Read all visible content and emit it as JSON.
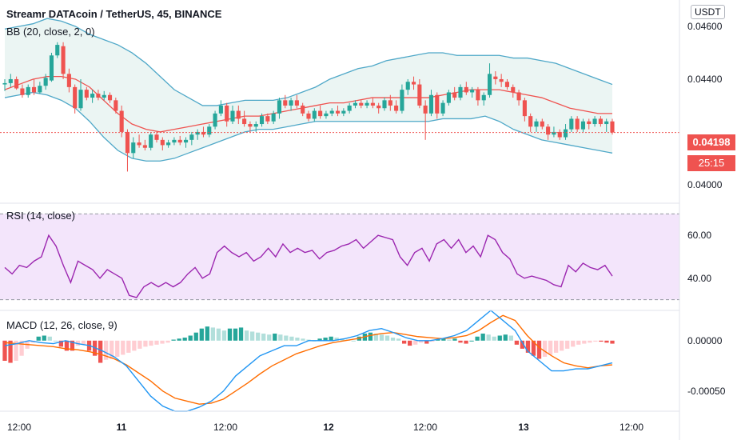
{
  "title": "Streamr DATAcoin / TetherUS, 45, BINANCE",
  "currency_button": "USDT",
  "bb_label": "BB (20, close, 2, 0)",
  "rsi_label": "RSI (14, close)",
  "macd_label": "MACD (12, 26, close, 9)",
  "last_price": "0.04198",
  "countdown": "25:15",
  "colors": {
    "up": "#26a69a",
    "down": "#ef5350",
    "bb_band": "#4fa8c8",
    "bb_basis": "#ef5350",
    "bb_fill": "#ebf5f3",
    "rsi_line": "#9c27b0",
    "rsi_fill": "#f3e5fb",
    "macd_line": "#2196f3",
    "signal_line": "#ff6d00"
  },
  "chart_data": {
    "price_panel": {
      "type": "candlestick",
      "y_ticks": [
        "0.04600",
        "0.04400",
        "0.04000"
      ],
      "ylim": [
        0.0393,
        0.047
      ],
      "candles": [
        [
          0.0438,
          0.044,
          0.04355,
          0.04385
        ],
        [
          0.04385,
          0.0442,
          0.0437,
          0.044
        ],
        [
          0.044,
          0.0441,
          0.0436,
          0.04365
        ],
        [
          0.04365,
          0.0438,
          0.0433,
          0.0434
        ],
        [
          0.0434,
          0.0438,
          0.0433,
          0.0437
        ],
        [
          0.0437,
          0.044,
          0.0434,
          0.0435
        ],
        [
          0.0435,
          0.0439,
          0.04345,
          0.04375
        ],
        [
          0.04375,
          0.0442,
          0.0436,
          0.04405
        ],
        [
          0.04395,
          0.045,
          0.0439,
          0.0449
        ],
        [
          0.0449,
          0.0454,
          0.0448,
          0.0453
        ],
        [
          0.04525,
          0.0454,
          0.044,
          0.0442
        ],
        [
          0.0442,
          0.0444,
          0.0435,
          0.0437
        ],
        [
          0.0437,
          0.0438,
          0.0427,
          0.0429
        ],
        [
          0.0429,
          0.044,
          0.0428,
          0.0436
        ],
        [
          0.0436,
          0.0437,
          0.0432,
          0.0433
        ],
        [
          0.0433,
          0.0436,
          0.0431,
          0.04345
        ],
        [
          0.04345,
          0.0436,
          0.0432,
          0.0433
        ],
        [
          0.0433,
          0.04355,
          0.0432,
          0.0434
        ],
        [
          0.0434,
          0.0435,
          0.0431,
          0.0432
        ],
        [
          0.0432,
          0.0433,
          0.0427,
          0.0428
        ],
        [
          0.0428,
          0.043,
          0.0418,
          0.042
        ],
        [
          0.042,
          0.0421,
          0.0405,
          0.0412
        ],
        [
          0.0412,
          0.0418,
          0.041,
          0.0416
        ],
        [
          0.0416,
          0.0419,
          0.0414,
          0.0415
        ],
        [
          0.0415,
          0.0417,
          0.0413,
          0.0414
        ],
        [
          0.0414,
          0.042,
          0.0413,
          0.0419
        ],
        [
          0.0419,
          0.042,
          0.0416,
          0.0417
        ],
        [
          0.0417,
          0.0418,
          0.0413,
          0.0415
        ],
        [
          0.0415,
          0.0417,
          0.0414,
          0.0416
        ],
        [
          0.0416,
          0.0418,
          0.0415,
          0.0417
        ],
        [
          0.0417,
          0.04185,
          0.0415,
          0.0416
        ],
        [
          0.0416,
          0.0418,
          0.0414,
          0.0417
        ],
        [
          0.0417,
          0.042,
          0.0415,
          0.0419
        ],
        [
          0.0419,
          0.0421,
          0.0417,
          0.042
        ],
        [
          0.042,
          0.0422,
          0.0418,
          0.0419
        ],
        [
          0.0419,
          0.0423,
          0.0418,
          0.0422
        ],
        [
          0.0422,
          0.0428,
          0.0421,
          0.0427
        ],
        [
          0.0427,
          0.0432,
          0.0426,
          0.043
        ],
        [
          0.043,
          0.0431,
          0.0422,
          0.0424
        ],
        [
          0.0424,
          0.043,
          0.0423,
          0.0428
        ],
        [
          0.0428,
          0.043,
          0.0423,
          0.0425
        ],
        [
          0.0425,
          0.0428,
          0.0422,
          0.0423
        ],
        [
          0.0423,
          0.0424,
          0.042,
          0.0422
        ],
        [
          0.0422,
          0.0424,
          0.042,
          0.0423
        ],
        [
          0.0423,
          0.0427,
          0.0422,
          0.0426
        ],
        [
          0.0426,
          0.0427,
          0.0423,
          0.0424
        ],
        [
          0.0424,
          0.0428,
          0.0423,
          0.0427
        ],
        [
          0.0427,
          0.0433,
          0.0425,
          0.0432
        ],
        [
          0.0432,
          0.0434,
          0.0429,
          0.043
        ],
        [
          0.043,
          0.0433,
          0.0428,
          0.0432
        ],
        [
          0.0432,
          0.0434,
          0.0429,
          0.043
        ],
        [
          0.043,
          0.0431,
          0.0426,
          0.0427
        ],
        [
          0.0427,
          0.0428,
          0.0424,
          0.0425
        ],
        [
          0.0425,
          0.0429,
          0.0424,
          0.0428
        ],
        [
          0.0428,
          0.043,
          0.0425,
          0.0426
        ],
        [
          0.0426,
          0.0428,
          0.0425,
          0.0427
        ],
        [
          0.0427,
          0.0429,
          0.0426,
          0.0428
        ],
        [
          0.0428,
          0.043,
          0.0426,
          0.0427
        ],
        [
          0.0427,
          0.0429,
          0.0426,
          0.0428
        ],
        [
          0.0428,
          0.0431,
          0.0427,
          0.043
        ],
        [
          0.043,
          0.0432,
          0.0429,
          0.0431
        ],
        [
          0.0431,
          0.0432,
          0.0429,
          0.043
        ],
        [
          0.043,
          0.0432,
          0.0429,
          0.0431
        ],
        [
          0.0431,
          0.0433,
          0.0429,
          0.043
        ],
        [
          0.043,
          0.0431,
          0.0427,
          0.0429
        ],
        [
          0.0429,
          0.0433,
          0.0428,
          0.0432
        ],
        [
          0.0432,
          0.0434,
          0.0428,
          0.043
        ],
        [
          0.043,
          0.0432,
          0.0427,
          0.0428
        ],
        [
          0.0428,
          0.0438,
          0.0427,
          0.0436
        ],
        [
          0.0436,
          0.044,
          0.0434,
          0.0439
        ],
        [
          0.0439,
          0.0441,
          0.0436,
          0.0438
        ],
        [
          0.0438,
          0.044,
          0.0429,
          0.043
        ],
        [
          0.043,
          0.0432,
          0.0417,
          0.0427
        ],
        [
          0.0427,
          0.0436,
          0.0426,
          0.0434
        ],
        [
          0.0434,
          0.0435,
          0.0425,
          0.0427
        ],
        [
          0.0427,
          0.0432,
          0.0426,
          0.0431
        ],
        [
          0.0431,
          0.0436,
          0.043,
          0.0435
        ],
        [
          0.0435,
          0.0437,
          0.0432,
          0.0433
        ],
        [
          0.0433,
          0.0438,
          0.0432,
          0.0437
        ],
        [
          0.0437,
          0.0439,
          0.0434,
          0.0435
        ],
        [
          0.0435,
          0.0437,
          0.0433,
          0.0436
        ],
        [
          0.0436,
          0.0437,
          0.043,
          0.0432
        ],
        [
          0.0432,
          0.0435,
          0.043,
          0.0434
        ],
        [
          0.0434,
          0.0446,
          0.0433,
          0.0442
        ],
        [
          0.0441,
          0.0443,
          0.0438,
          0.044
        ],
        [
          0.044,
          0.0442,
          0.0437,
          0.0439
        ],
        [
          0.0439,
          0.044,
          0.0436,
          0.0437
        ],
        [
          0.0437,
          0.0438,
          0.0433,
          0.0435
        ],
        [
          0.0435,
          0.0436,
          0.043,
          0.0432
        ],
        [
          0.0432,
          0.0433,
          0.0424,
          0.0426
        ],
        [
          0.0426,
          0.0427,
          0.042,
          0.0422
        ],
        [
          0.0422,
          0.0425,
          0.042,
          0.0424
        ],
        [
          0.0424,
          0.0425,
          0.0421,
          0.0422
        ],
        [
          0.0422,
          0.0423,
          0.0417,
          0.0419
        ],
        [
          0.0419,
          0.0422,
          0.0418,
          0.042
        ],
        [
          0.042,
          0.0421,
          0.0417,
          0.0418
        ],
        [
          0.0418,
          0.0423,
          0.0417,
          0.0421
        ],
        [
          0.0421,
          0.0426,
          0.042,
          0.0425
        ],
        [
          0.0425,
          0.0426,
          0.042,
          0.0421
        ],
        [
          0.0421,
          0.0425,
          0.042,
          0.0424
        ],
        [
          0.0424,
          0.0425,
          0.0421,
          0.0423
        ],
        [
          0.0423,
          0.0426,
          0.0422,
          0.0425
        ],
        [
          0.0425,
          0.0426,
          0.0422,
          0.0423
        ],
        [
          0.0423,
          0.0425,
          0.042,
          0.0424
        ],
        [
          0.0424,
          0.0425,
          0.0419,
          0.04198
        ]
      ],
      "bb_upper": [
        0.0459,
        0.046,
        0.0461,
        0.0463,
        0.0462,
        0.046,
        0.0457,
        0.0455,
        0.0453,
        0.045,
        0.0446,
        0.0441,
        0.0436,
        0.0433,
        0.043,
        0.043,
        0.0431,
        0.0432,
        0.0432,
        0.0432,
        0.0433,
        0.0435,
        0.0437,
        0.044,
        0.0442,
        0.0444,
        0.0445,
        0.0447,
        0.0448,
        0.0449,
        0.045,
        0.045,
        0.0449,
        0.0449,
        0.0449,
        0.0449,
        0.0448,
        0.0448,
        0.0447,
        0.0446,
        0.0444,
        0.0442,
        0.044,
        0.0438
      ],
      "bb_basis": [
        0.0436,
        0.0438,
        0.044,
        0.0441,
        0.0441,
        0.044,
        0.0437,
        0.0432,
        0.0427,
        0.0423,
        0.0421,
        0.042,
        0.0421,
        0.0422,
        0.0423,
        0.0424,
        0.0425,
        0.0426,
        0.0426,
        0.0427,
        0.0428,
        0.0429,
        0.043,
        0.0431,
        0.0431,
        0.0432,
        0.0433,
        0.0433,
        0.0433,
        0.0433,
        0.0433,
        0.0434,
        0.0435,
        0.0436,
        0.0436,
        0.0436,
        0.0435,
        0.0434,
        0.0433,
        0.0431,
        0.0429,
        0.0428,
        0.0427,
        0.0427
      ],
      "bb_lower": [
        0.0433,
        0.0434,
        0.0435,
        0.0434,
        0.0432,
        0.0429,
        0.0424,
        0.0418,
        0.0413,
        0.041,
        0.0409,
        0.0409,
        0.041,
        0.0412,
        0.0414,
        0.0416,
        0.0418,
        0.042,
        0.0421,
        0.0421,
        0.0422,
        0.0423,
        0.0424,
        0.0424,
        0.0424,
        0.0424,
        0.0424,
        0.0424,
        0.0424,
        0.0424,
        0.0424,
        0.0425,
        0.0425,
        0.0425,
        0.0426,
        0.0424,
        0.0421,
        0.0419,
        0.0417,
        0.0416,
        0.0415,
        0.0414,
        0.0413,
        0.0412
      ]
    },
    "rsi_panel": {
      "type": "line",
      "y_ticks": [
        "60.00",
        "40.00"
      ],
      "ylim": [
        25,
        75
      ],
      "band": [
        30,
        70
      ],
      "values": [
        45,
        42,
        46,
        45,
        48,
        50,
        60,
        55,
        46,
        38,
        48,
        46,
        44,
        40,
        44,
        42,
        40,
        32,
        31,
        36,
        38,
        36,
        38,
        36,
        38,
        42,
        45,
        40,
        42,
        52,
        55,
        52,
        50,
        52,
        48,
        50,
        54,
        50,
        56,
        52,
        54,
        52,
        53,
        49,
        52,
        53,
        55,
        56,
        58,
        54,
        57,
        60,
        59,
        58,
        50,
        46,
        52,
        54,
        48,
        56,
        58,
        54,
        58,
        52,
        55,
        50,
        60,
        58,
        52,
        49,
        42,
        40,
        41,
        40,
        39,
        37,
        36,
        46,
        43,
        47,
        45,
        44,
        46,
        41
      ],
      "xlabels": [
        "12:00",
        "11",
        "12:00",
        "12",
        "12:00",
        "13",
        "12:00"
      ]
    },
    "macd_panel": {
      "type": "bar+line",
      "y_ticks": [
        "0.00000",
        "-0.00050"
      ],
      "ylim": [
        -0.0007,
        0.0003
      ],
      "macd": [
        -5e-05,
        -3e-05,
        0.0,
        -2e-05,
        -3e-05,
        0.0,
        -3e-05,
        -5e-05,
        -0.0001,
        -0.00016,
        -0.00025,
        -0.0004,
        -0.00055,
        -0.00065,
        -0.0007,
        -0.0007,
        -0.00066,
        -0.0006,
        -0.0005,
        -0.00035,
        -0.00025,
        -0.00015,
        -0.0001,
        -5e-05,
        -5e-05,
        0.0,
        0.0,
        0.0,
        2e-05,
        5e-05,
        0.0001,
        0.00012,
        8e-05,
        3e-05,
        0.0,
        0.0,
        2e-05,
        5e-05,
        0.0001,
        0.0002,
        0.0003,
        0.0002,
        0.0001,
        -0.0001,
        -0.0002,
        -0.0003,
        -0.0003,
        -0.00028,
        -0.00028,
        -0.00025,
        -0.00022
      ],
      "signal": [
        -2e-05,
        -3e-05,
        -4e-05,
        -5e-05,
        -6e-05,
        -8e-05,
        -9e-05,
        -0.00011,
        -0.00014,
        -0.00018,
        -0.00024,
        -0.00032,
        -0.0004,
        -0.0005,
        -0.00057,
        -0.0006,
        -0.00063,
        -0.00062,
        -0.00058,
        -0.0005,
        -0.00042,
        -0.00033,
        -0.00025,
        -0.00019,
        -0.00013,
        -9e-05,
        -5e-05,
        -2e-05,
        0.0,
        2e-05,
        5e-05,
        7e-05,
        8e-05,
        6e-05,
        4e-05,
        3e-05,
        2e-05,
        3e-05,
        5e-05,
        0.0001,
        0.00018,
        0.00025,
        0.0002,
        5e-05,
        -7e-05,
        -0.00015,
        -0.00022,
        -0.00025,
        -0.00027,
        -0.00025,
        -0.00024
      ],
      "hist": [
        -0.0002,
        -0.00022,
        -0.0002,
        -0.00015,
        -8e-05,
        -2e-05,
        4e-05,
        5e-05,
        4e-05,
        0.0,
        -6e-05,
        -0.0001,
        -0.0001,
        -5e-05,
        -4e-05,
        -0.0001,
        -0.00015,
        -0.00022,
        -0.00019,
        -0.00018,
        -0.00016,
        -0.00014,
        -0.00012,
        -0.0001,
        -8e-05,
        -6e-05,
        -5e-05,
        -4e-05,
        -3e-05,
        -2e-05,
        1e-05,
        2e-05,
        3e-05,
        5e-05,
        8e-05,
        0.00012,
        0.00014,
        0.00013,
        0.00012,
        0.0001,
        0.00012,
        0.00012,
        0.00013,
        0.0001,
        9e-05,
        8e-05,
        7e-05,
        6e-05,
        7e-05,
        6e-05,
        5e-05,
        4e-05,
        3e-05,
        2e-05,
        1e-05,
        0.0,
        2e-05,
        3e-05,
        4e-05,
        3e-05,
        2e-05,
        1e-05,
        0.0,
        4e-05,
        7e-05,
        8e-05,
        7e-05,
        6e-05,
        5e-05,
        3e-05,
        2e-05,
        -3e-05,
        -5e-05,
        -4e-05,
        -2e-05,
        -3e-05,
        -1e-05,
        1e-05,
        2e-05,
        1e-05,
        2e-05,
        -2e-05,
        -3e-05,
        0.0,
        4e-05,
        7e-05,
        6e-05,
        4e-05,
        5e-05,
        6e-05,
        5e-05,
        -4e-05,
        -8e-05,
        -0.00012,
        -0.00015,
        -0.00018,
        -0.00016,
        -0.00014,
        -0.00012,
        -0.0001,
        -8e-05,
        -6e-05,
        -4e-05,
        -3e-05,
        -2e-05,
        -1e-05,
        -1e-05,
        -2e-05,
        -3e-05
      ]
    }
  }
}
